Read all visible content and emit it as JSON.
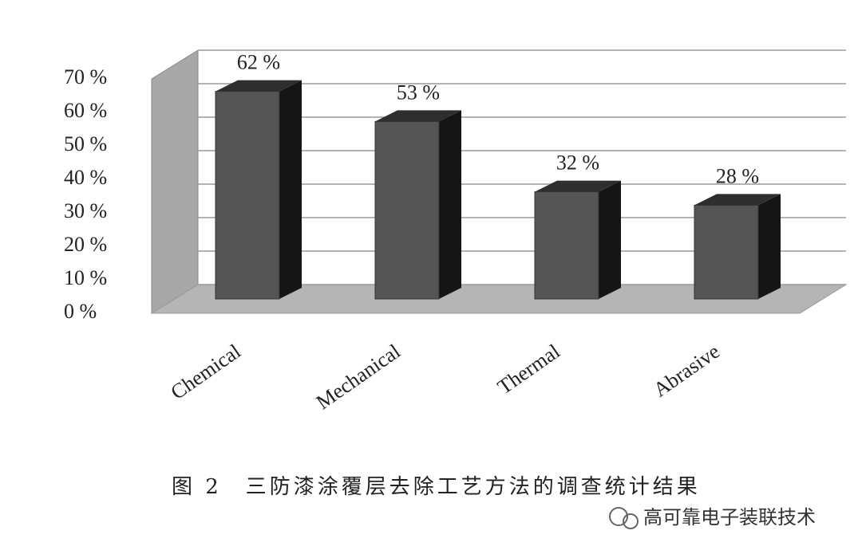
{
  "chart_data": {
    "type": "bar3d",
    "categories": [
      "Chemical",
      "Mechanical",
      "Thermal",
      "Abrasive"
    ],
    "values": [
      62,
      53,
      32,
      28
    ],
    "value_labels": [
      "62 %",
      "53 %",
      "32 %",
      "28 %"
    ],
    "color": "#555555",
    "ylim": [
      0,
      70
    ],
    "yticks": [
      {
        "value": 0,
        "label": "0 %"
      },
      {
        "value": 10,
        "label": "10 %"
      },
      {
        "value": 20,
        "label": "20 %"
      },
      {
        "value": 30,
        "label": "30 %"
      },
      {
        "value": 40,
        "label": "40 %"
      },
      {
        "value": 50,
        "label": "50 %"
      },
      {
        "value": 60,
        "label": "60 %"
      },
      {
        "value": 70,
        "label": "70 %"
      }
    ],
    "grid": true
  },
  "caption": "图 2　三防漆涂覆层去除工艺方法的调查统计结果",
  "watermark": "高可靠电子装联技术"
}
